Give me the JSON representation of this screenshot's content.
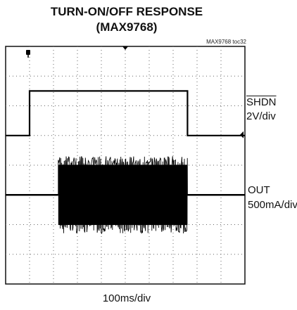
{
  "chart_data": {
    "type": "line",
    "title": "TURN-ON/OFF RESPONSE",
    "subtitle": "(MAX9768)",
    "figure_id": "MAX9768 toc32",
    "xlabel": "100ms/div",
    "x_unit_label": "100ms/div",
    "grid": true,
    "divisions": {
      "x": 10,
      "y": 8
    },
    "trigger_marker": "trigger-arrow",
    "ground_marker": "ground-marker",
    "series": [
      {
        "name": "SHDN",
        "overline": true,
        "scale": "2V/div",
        "type": "digital",
        "x_ms": [
          0,
          100,
          100,
          760,
          760,
          1000
        ],
        "y_div": [
          0,
          0,
          1.5,
          1.5,
          0,
          0
        ]
      },
      {
        "name": "OUT",
        "scale": "500mA/div",
        "type": "burst",
        "active_ms": [
          220,
          760
        ],
        "amplitude_div": 1.3
      }
    ]
  }
}
